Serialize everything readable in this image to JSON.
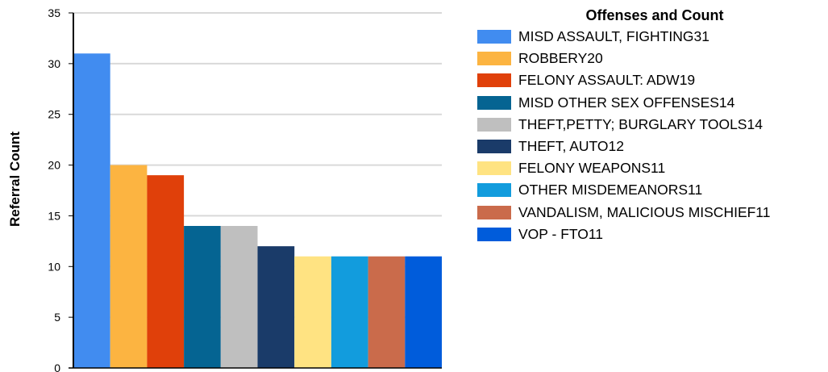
{
  "chart_data": {
    "type": "bar",
    "ylabel": "Referral Count",
    "ylim": [
      0,
      35
    ],
    "yticks": [
      0,
      5,
      10,
      15,
      20,
      25,
      30,
      35
    ],
    "grid": true,
    "legend_placement": "right",
    "legend_title": "Offenses and Count",
    "categories": [
      "MISD ASSAULT, FIGHTING",
      "ROBBERY",
      "FELONY ASSAULT: ADW",
      "MISD OTHER SEX OFFENSES",
      "THEFT,PETTY; BURGLARY TOOLS",
      "THEFT, AUTO",
      "FELONY WEAPONS",
      "OTHER MISDEMEANORS",
      "VANDALISM, MALICIOUS MISCHIEF",
      "VOP - FTO"
    ],
    "values": [
      31,
      20,
      19,
      14,
      14,
      12,
      11,
      11,
      11,
      11
    ],
    "legend_labels": [
      "MISD ASSAULT, FIGHTING31",
      "ROBBERY20",
      "FELONY ASSAULT: ADW19",
      "MISD OTHER SEX OFFENSES14",
      "THEFT,PETTY; BURGLARY TOOLS14",
      "THEFT, AUTO12",
      "FELONY WEAPONS11",
      "OTHER MISDEMEANORS11",
      "VANDALISM, MALICIOUS MISCHIEF11",
      "VOP - FTO11"
    ],
    "colors": [
      "#418cf0",
      "#fcb441",
      "#e0400a",
      "#056492",
      "#bfbfbf",
      "#1a3b69",
      "#ffe382",
      "#129cdd",
      "#ca6b4b",
      "#005cdb"
    ]
  }
}
